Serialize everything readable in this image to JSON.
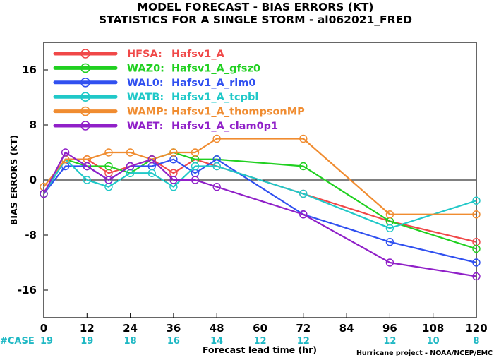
{
  "chart_data": {
    "type": "line",
    "title": "MODEL FORECAST - BIAS ERRORS (KT)",
    "subtitle": "STATISTICS FOR A SINGLE STORM - al062021_FRED",
    "xlabel": "Forecast lead time (hr)",
    "ylabel": "BIAS ERRORS (KT)",
    "xlim": [
      0,
      120
    ],
    "ylim": [
      -20,
      20
    ],
    "x_ticks": [
      0,
      12,
      24,
      36,
      48,
      60,
      72,
      84,
      96,
      108,
      120
    ],
    "y_ticks": [
      16,
      8,
      0,
      -8,
      -16
    ],
    "y_tick_labels": [
      "16",
      "8",
      "0",
      "-8",
      "-16"
    ],
    "zero_line": true,
    "grid": false,
    "legend_position": "top-left",
    "case_row": {
      "label": "#CASE",
      "x": [
        0,
        12,
        24,
        36,
        48,
        60,
        72,
        96,
        108,
        120
      ],
      "counts": [
        "19",
        "19",
        "18",
        "16",
        "14",
        "12",
        "12",
        "12",
        "10",
        "8"
      ]
    },
    "series": [
      {
        "code": "HFSA:",
        "name": "Hafsv1_A",
        "color": "#f04848",
        "x": [
          0,
          6,
          12,
          18,
          24,
          30,
          36,
          42,
          48,
          72,
          96,
          120
        ],
        "y": [
          -2,
          3,
          3,
          1,
          2,
          3,
          1,
          3,
          2,
          -2,
          -6,
          -9
        ]
      },
      {
        "code": "WAZ0:",
        "name": "Hafsv1_A_gfsz0",
        "color": "#20d020",
        "x": [
          0,
          6,
          12,
          18,
          24,
          30,
          36,
          42,
          48,
          72,
          96,
          120
        ],
        "y": [
          -2,
          3,
          2,
          2,
          1,
          3,
          4,
          3,
          3,
          2,
          -6,
          -10
        ]
      },
      {
        "code": "WAL0:",
        "name": "Hafsv1_A_rlm0",
        "color": "#3050f0",
        "x": [
          0,
          6,
          12,
          18,
          24,
          30,
          36,
          42,
          48,
          72,
          96,
          120
        ],
        "y": [
          -2,
          2,
          2,
          0,
          2,
          2,
          3,
          1,
          3,
          -5,
          -9,
          -12
        ]
      },
      {
        "code": "WATB:",
        "name": "Hafsv1_A_tcpbl",
        "color": "#20c8c8",
        "x": [
          0,
          6,
          12,
          18,
          24,
          30,
          36,
          42,
          48,
          72,
          96,
          120
        ],
        "y": [
          -2,
          3,
          0,
          -1,
          1,
          1,
          -1,
          2,
          2,
          -2,
          -7,
          -3
        ]
      },
      {
        "code": "WAMP:",
        "name": "Hafsv1_A_thompsonMP",
        "color": "#f08c30",
        "x": [
          0,
          6,
          12,
          18,
          24,
          30,
          36,
          42,
          48,
          72,
          96,
          120
        ],
        "y": [
          -1,
          3,
          3,
          4,
          4,
          3,
          4,
          4,
          6,
          6,
          -5,
          -5
        ]
      },
      {
        "code": "WAET:",
        "name": "Hafsv1_A_clam0p1",
        "color": "#9020c8",
        "x": [
          0,
          6,
          12,
          18,
          24,
          30,
          36,
          42,
          48,
          72,
          96,
          120
        ],
        "y": [
          -2,
          4,
          2,
          0,
          2,
          3,
          0,
          0,
          -1,
          -5,
          -12,
          -14
        ]
      }
    ]
  },
  "credit": "Hurricane project - NOAA/NCEP/EMC"
}
